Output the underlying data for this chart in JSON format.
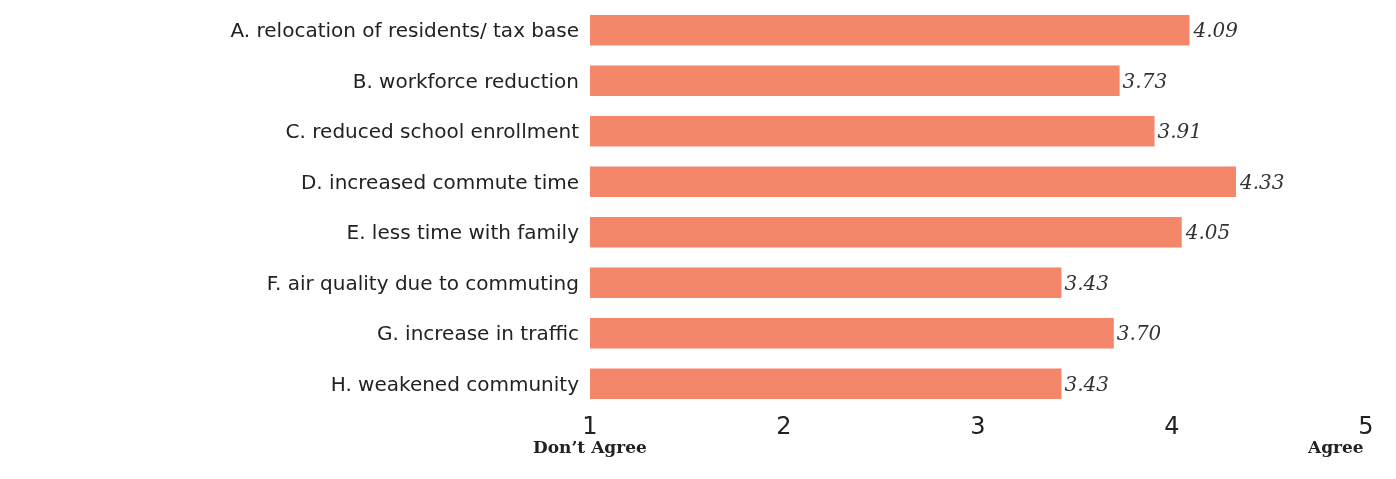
{
  "chart_data": {
    "type": "bar",
    "orientation": "horizontal",
    "categories": [
      "A. relocation of residents/ tax base",
      "B. workforce reduction",
      "C. reduced school enrollment",
      "D. increased commute time",
      "E. less time with family",
      "F. air quality due to commuting",
      "G. increase in traffic",
      "H. weakened community"
    ],
    "values": [
      4.09,
      3.73,
      3.91,
      4.33,
      4.05,
      3.43,
      3.7,
      3.43
    ],
    "value_labels": [
      "4.09",
      "3.73",
      "3.91",
      "4.33",
      "4.05",
      "3.43",
      "3.70",
      "3.43"
    ],
    "color": "#f4866a",
    "xlim": [
      1,
      5
    ],
    "xticks": [
      1,
      2,
      3,
      4,
      5
    ],
    "annotations": [
      "Don’t Agree",
      "Agree"
    ]
  }
}
